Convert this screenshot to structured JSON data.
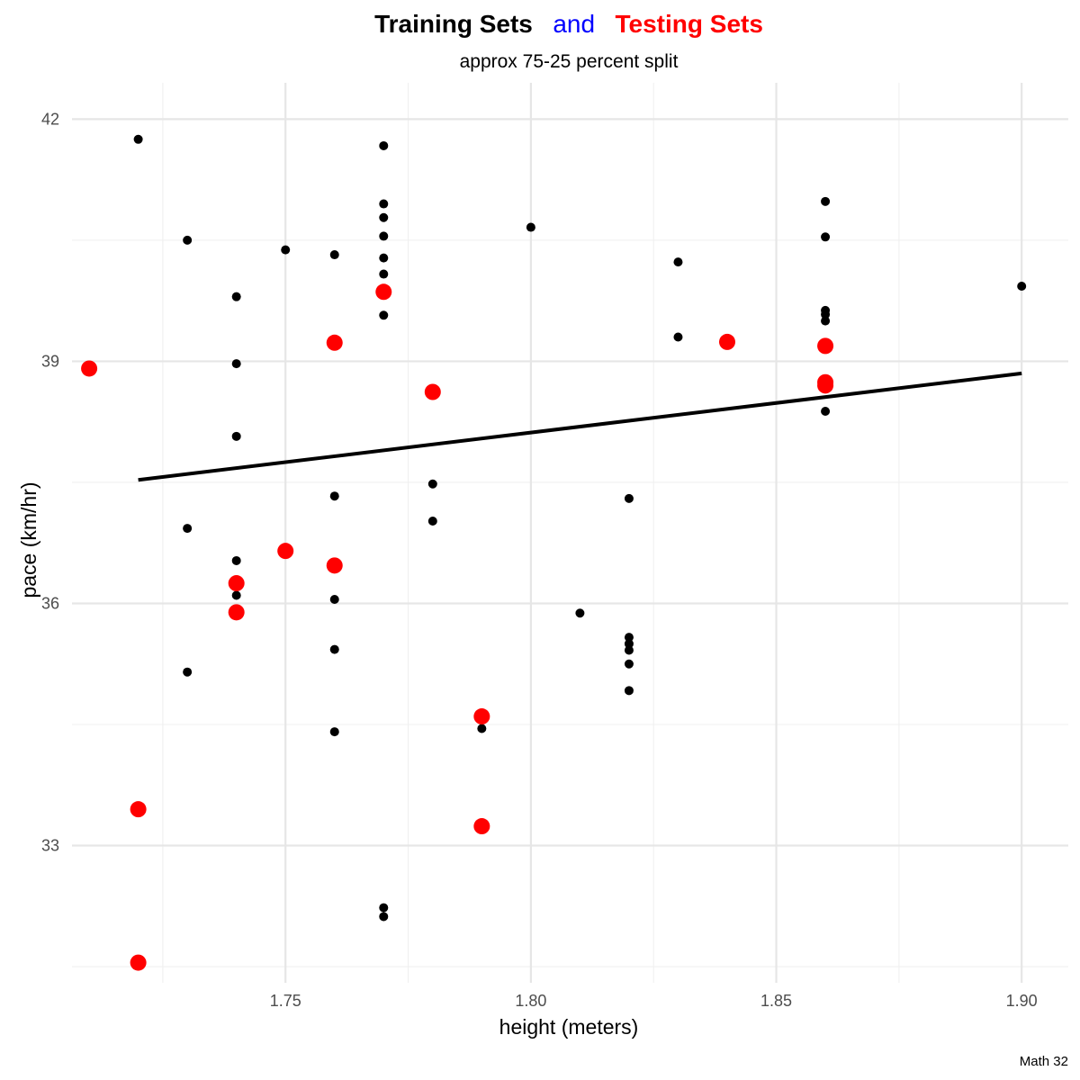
{
  "chart_data": {
    "type": "scatter",
    "title_parts": [
      {
        "text": "Training Sets",
        "color": "#000000"
      },
      {
        "text": "and",
        "color": "#0000ff"
      },
      {
        "text": "Testing Sets",
        "color": "#ff0000"
      }
    ],
    "subtitle": "approx 75-25 percent split",
    "xlabel": "height (meters)",
    "ylabel": "pace (km/hr)",
    "caption": "Math 32",
    "xlim": [
      1.7065,
      1.9095
    ],
    "ylim": [
      31.3,
      42.45
    ],
    "x_ticks": [
      1.75,
      1.8,
      1.85,
      1.9
    ],
    "x_tick_labels": [
      "1.75",
      "1.80",
      "1.85",
      "1.90"
    ],
    "y_ticks": [
      33,
      36,
      39,
      42
    ],
    "y_tick_labels": [
      "33",
      "36",
      "39",
      "42"
    ],
    "grid": true,
    "series": [
      {
        "color": "#000000",
        "marker": "small-dot",
        "points": [
          [
            1.72,
            41.75
          ],
          [
            1.73,
            40.5
          ],
          [
            1.73,
            36.93
          ],
          [
            1.73,
            35.15
          ],
          [
            1.74,
            39.8
          ],
          [
            1.74,
            38.97
          ],
          [
            1.74,
            38.07
          ],
          [
            1.74,
            36.53
          ],
          [
            1.74,
            36.1
          ],
          [
            1.75,
            40.38
          ],
          [
            1.76,
            40.32
          ],
          [
            1.76,
            37.33
          ],
          [
            1.76,
            36.05
          ],
          [
            1.76,
            35.43
          ],
          [
            1.76,
            34.41
          ],
          [
            1.77,
            41.67
          ],
          [
            1.77,
            40.95
          ],
          [
            1.77,
            40.78
          ],
          [
            1.77,
            40.55
          ],
          [
            1.77,
            40.28
          ],
          [
            1.77,
            40.08
          ],
          [
            1.77,
            39.57
          ],
          [
            1.77,
            32.23
          ],
          [
            1.77,
            32.12
          ],
          [
            1.78,
            37.48
          ],
          [
            1.78,
            37.02
          ],
          [
            1.79,
            34.45
          ],
          [
            1.8,
            40.66
          ],
          [
            1.81,
            35.88
          ],
          [
            1.82,
            37.3
          ],
          [
            1.82,
            35.58
          ],
          [
            1.82,
            35.5
          ],
          [
            1.82,
            35.42
          ],
          [
            1.82,
            35.25
          ],
          [
            1.82,
            34.92
          ],
          [
            1.83,
            40.23
          ],
          [
            1.83,
            39.3
          ],
          [
            1.86,
            40.98
          ],
          [
            1.86,
            40.54
          ],
          [
            1.86,
            39.63
          ],
          [
            1.86,
            39.58
          ],
          [
            1.86,
            39.5
          ],
          [
            1.86,
            38.38
          ],
          [
            1.9,
            39.93
          ]
        ]
      },
      {
        "color": "#ff0000",
        "marker": "large-dot",
        "points": [
          [
            1.71,
            38.91
          ],
          [
            1.72,
            33.45
          ],
          [
            1.72,
            31.55
          ],
          [
            1.74,
            36.25
          ],
          [
            1.74,
            35.89
          ],
          [
            1.75,
            36.65
          ],
          [
            1.76,
            39.23
          ],
          [
            1.76,
            36.47
          ],
          [
            1.77,
            39.86
          ],
          [
            1.78,
            38.62
          ],
          [
            1.79,
            34.6
          ],
          [
            1.79,
            33.24
          ],
          [
            1.84,
            39.24
          ],
          [
            1.86,
            39.19
          ],
          [
            1.86,
            38.74
          ],
          [
            1.86,
            38.7
          ]
        ]
      }
    ],
    "fit_line": {
      "x": [
        1.72,
        1.9
      ],
      "y": [
        37.53,
        38.85
      ],
      "color": "#000000"
    }
  }
}
